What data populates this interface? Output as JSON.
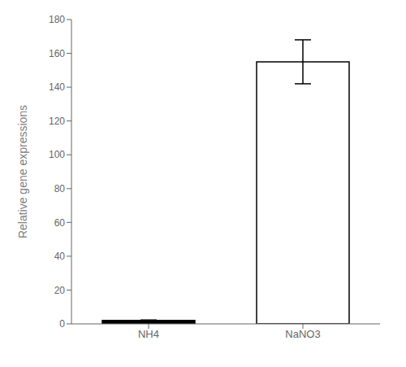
{
  "chart_data": {
    "type": "bar",
    "categories": [
      "NH4",
      "NaNO3"
    ],
    "values": [
      2.0,
      155.0
    ],
    "errors": [
      0.3,
      13.0
    ],
    "colors": [
      "#000000",
      "#ffffff"
    ],
    "ylabel": "Relative gene expressions",
    "ylim": [
      0,
      180
    ],
    "yticks": [
      0,
      20,
      40,
      60,
      80,
      100,
      120,
      140,
      160,
      180
    ],
    "grid": false
  }
}
